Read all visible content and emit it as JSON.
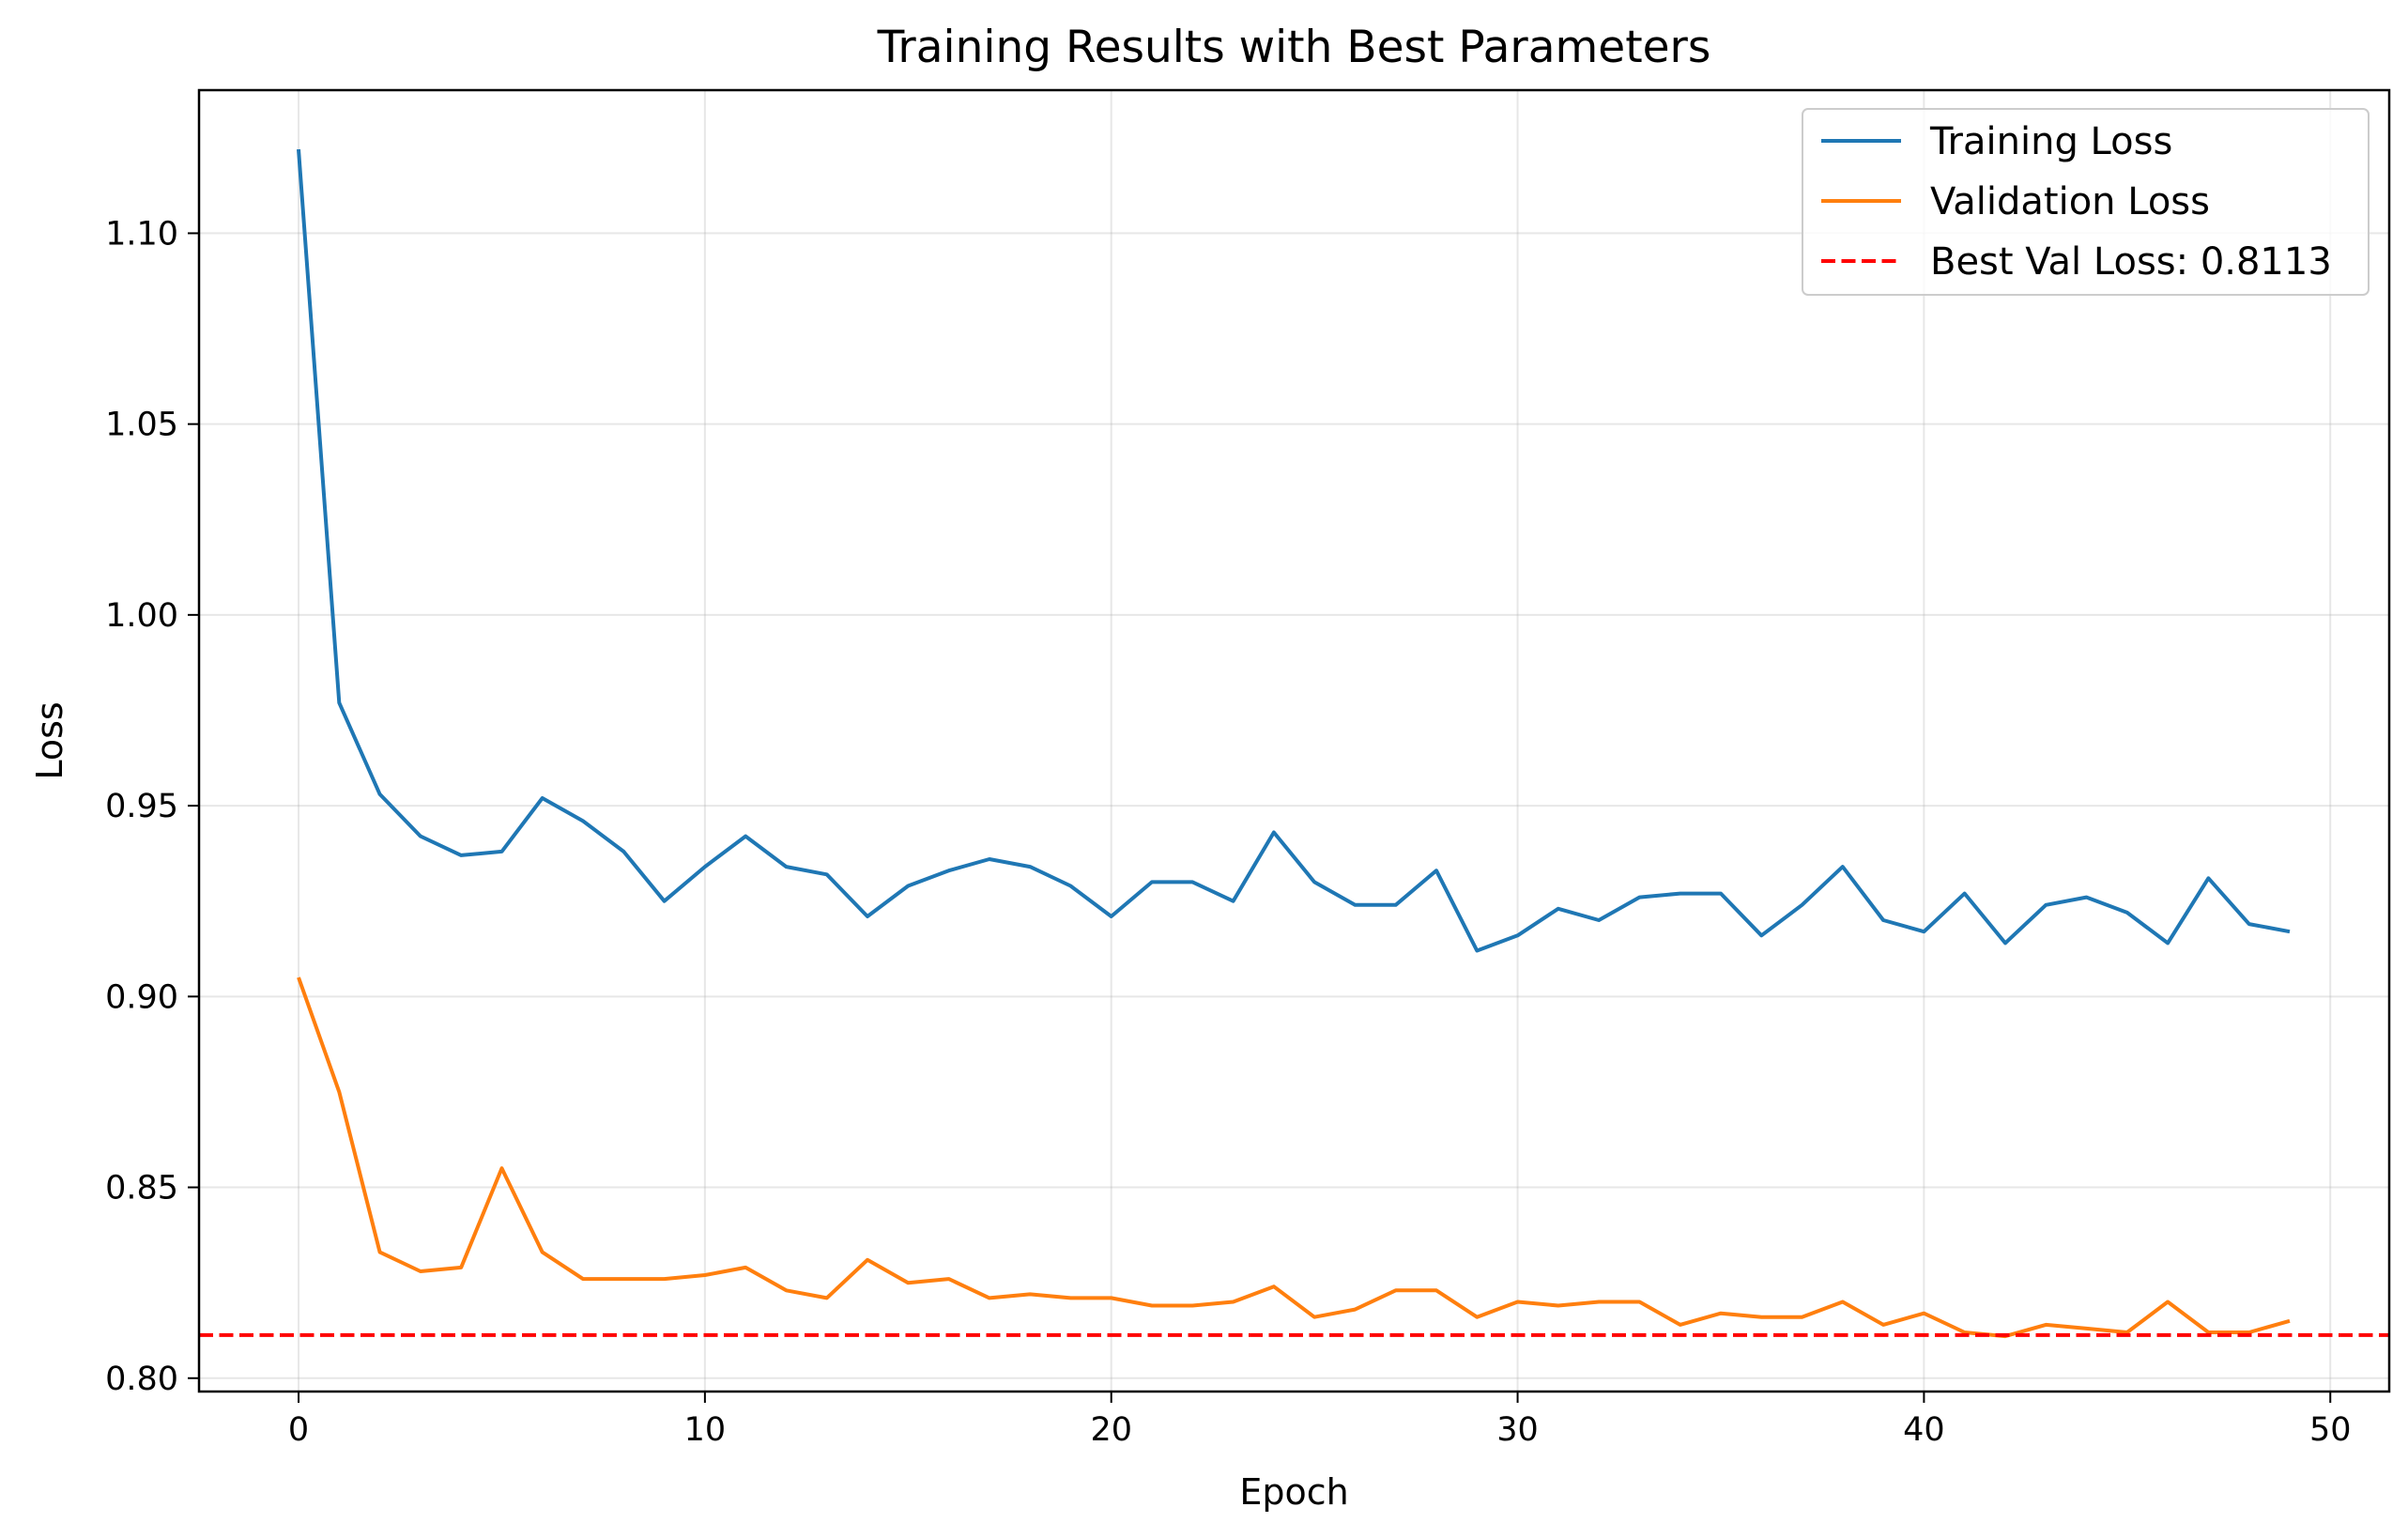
{
  "chart_data": {
    "type": "line",
    "title": "Training Results with Best Parameters",
    "xlabel": "Epoch",
    "ylabel": "Loss",
    "xlim": [
      -2.45,
      51.45
    ],
    "ylim": [
      0.7965,
      1.1375
    ],
    "xticks": [
      0,
      10,
      20,
      30,
      40,
      50
    ],
    "xtick_labels": [
      "0",
      "10",
      "20",
      "30",
      "40",
      "50"
    ],
    "yticks": [
      0.8,
      0.85,
      0.9,
      0.95,
      1.0,
      1.05,
      1.1
    ],
    "ytick_labels": [
      "0.80",
      "0.85",
      "0.90",
      "0.95",
      "1.00",
      "1.05",
      "1.10"
    ],
    "grid": true,
    "legend_position": "top-right",
    "x": [
      0,
      1,
      2,
      3,
      4,
      5,
      6,
      7,
      8,
      9,
      10,
      11,
      12,
      13,
      14,
      15,
      16,
      17,
      18,
      19,
      20,
      21,
      22,
      23,
      24,
      25,
      26,
      27,
      28,
      29,
      30,
      31,
      32,
      33,
      34,
      35,
      36,
      37,
      38,
      39,
      40,
      41,
      42,
      43,
      44,
      45,
      46,
      47,
      48,
      49
    ],
    "series": [
      {
        "name": "Training Loss",
        "color": "#1f77b4",
        "style": "solid",
        "values": [
          1.122,
          0.977,
          0.953,
          0.942,
          0.937,
          0.938,
          0.952,
          0.946,
          0.938,
          0.925,
          0.934,
          0.942,
          0.934,
          0.932,
          0.921,
          0.929,
          0.933,
          0.936,
          0.934,
          0.929,
          0.921,
          0.93,
          0.93,
          0.925,
          0.943,
          0.93,
          0.924,
          0.924,
          0.933,
          0.912,
          0.916,
          0.923,
          0.92,
          0.926,
          0.927,
          0.927,
          0.916,
          0.924,
          0.934,
          0.92,
          0.917,
          0.927,
          0.914,
          0.924,
          0.926,
          0.922,
          0.914,
          0.931,
          0.919,
          0.917
        ]
      },
      {
        "name": "Validation Loss",
        "color": "#ff7f0e",
        "style": "solid",
        "values": [
          0.905,
          0.875,
          0.833,
          0.828,
          0.829,
          0.855,
          0.833,
          0.826,
          0.826,
          0.826,
          0.827,
          0.829,
          0.823,
          0.821,
          0.831,
          0.825,
          0.826,
          0.821,
          0.822,
          0.821,
          0.821,
          0.819,
          0.819,
          0.82,
          0.824,
          0.816,
          0.818,
          0.823,
          0.823,
          0.816,
          0.82,
          0.819,
          0.82,
          0.82,
          0.814,
          0.817,
          0.816,
          0.816,
          0.82,
          0.814,
          0.817,
          0.812,
          0.811,
          0.814,
          0.813,
          0.812,
          0.82,
          0.812,
          0.812,
          0.815
        ]
      }
    ],
    "reference_lines": [
      {
        "name": "Best Val Loss: 0.8113",
        "value": 0.8113,
        "orientation": "horizontal",
        "color": "#ff0000",
        "style": "dashed"
      }
    ]
  }
}
